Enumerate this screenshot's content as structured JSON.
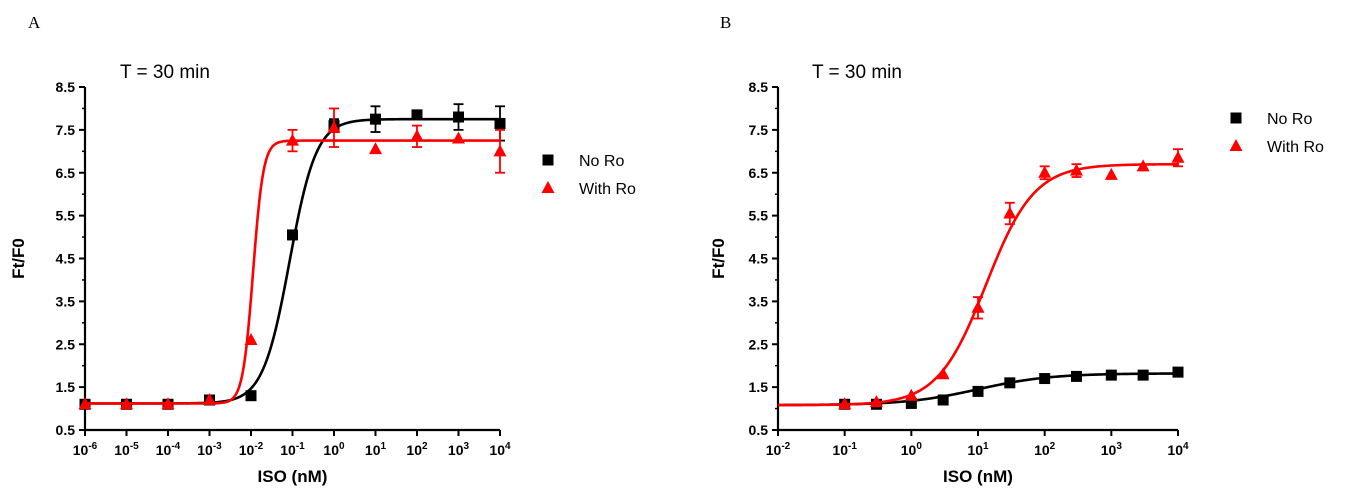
{
  "chart_data": [
    {
      "type": "scatter",
      "panel_label": "A",
      "title": "T = 30 min",
      "xlabel": "ISO (nM)",
      "ylabel": "Ft/F0",
      "x_scale": "log",
      "xlim": [
        1e-06,
        10000.0
      ],
      "ylim": [
        0.5,
        8.5
      ],
      "xticks": [
        1e-06,
        1e-05,
        0.0001,
        0.001,
        0.01,
        0.1,
        1.0,
        10.0,
        100.0,
        1000.0,
        10000.0
      ],
      "xtick_labels": [
        {
          "base": "10",
          "exp": "-6"
        },
        {
          "base": "10",
          "exp": "-5"
        },
        {
          "base": "10",
          "exp": "-4"
        },
        {
          "base": "10",
          "exp": "-3"
        },
        {
          "base": "10",
          "exp": "-2"
        },
        {
          "base": "10",
          "exp": "-1"
        },
        {
          "base": "10",
          "exp": "0"
        },
        {
          "base": "10",
          "exp": "1"
        },
        {
          "base": "10",
          "exp": "2"
        },
        {
          "base": "10",
          "exp": "3"
        },
        {
          "base": "10",
          "exp": "4"
        }
      ],
      "yticks": [
        0.5,
        1.5,
        2.5,
        3.5,
        4.5,
        5.5,
        6.5,
        7.5,
        8.5
      ],
      "ytick_labels": [
        "0.5",
        "1.5",
        "2.5",
        "3.5",
        "4.5",
        "5.5",
        "6.5",
        "7.5",
        "8.5"
      ],
      "legend_position": "right",
      "series": [
        {
          "name": "No Ro",
          "color": "#000000",
          "marker": "square",
          "x": [
            1e-06,
            1e-05,
            0.0001,
            0.001,
            0.01,
            0.1,
            1.0,
            10.0,
            100.0,
            1000.0,
            10000.0
          ],
          "y": [
            1.1,
            1.1,
            1.1,
            1.2,
            1.3,
            5.05,
            7.6,
            7.75,
            7.85,
            7.8,
            7.65
          ],
          "err": [
            0.05,
            0.05,
            0.05,
            0.05,
            0.05,
            0.1,
            0.15,
            0.3,
            0.1,
            0.3,
            0.4
          ],
          "fit": {
            "bottom": 1.12,
            "top": 7.75,
            "log_ec50": -1.07,
            "hill": 1.35
          }
        },
        {
          "name": "With Ro",
          "color": "#ff0000",
          "marker": "triangle",
          "x": [
            1e-06,
            1e-05,
            0.0001,
            0.001,
            0.01,
            0.1,
            1.0,
            10.0,
            100.0,
            1000.0,
            10000.0
          ],
          "y": [
            1.1,
            1.1,
            1.1,
            1.2,
            2.6,
            7.25,
            7.55,
            7.05,
            7.35,
            7.3,
            7.0
          ],
          "err": [
            0.05,
            0.05,
            0.05,
            0.05,
            0.05,
            0.25,
            0.45,
            0.05,
            0.25,
            0.05,
            0.5
          ],
          "fit": {
            "bottom": 1.12,
            "top": 7.25,
            "log_ec50": -1.95,
            "hill": 3.5
          }
        }
      ]
    },
    {
      "type": "scatter",
      "panel_label": "B",
      "title": "T = 30 min",
      "xlabel": "ISO (nM)",
      "ylabel": "Ft/F0",
      "x_scale": "log",
      "xlim": [
        0.01,
        10000.0
      ],
      "ylim": [
        0.5,
        8.5
      ],
      "xticks": [
        0.01,
        0.1,
        1.0,
        10.0,
        100.0,
        1000.0,
        10000.0
      ],
      "xtick_labels": [
        {
          "base": "10",
          "exp": "-2"
        },
        {
          "base": "10",
          "exp": "-1"
        },
        {
          "base": "10",
          "exp": "0"
        },
        {
          "base": "10",
          "exp": "1"
        },
        {
          "base": "10",
          "exp": "2"
        },
        {
          "base": "10",
          "exp": "3"
        },
        {
          "base": "10",
          "exp": "4"
        }
      ],
      "yticks": [
        0.5,
        1.5,
        2.5,
        3.5,
        4.5,
        5.5,
        6.5,
        7.5,
        8.5
      ],
      "ytick_labels": [
        "0.5",
        "1.5",
        "2.5",
        "3.5",
        "4.5",
        "5.5",
        "6.5",
        "7.5",
        "8.5"
      ],
      "legend_position": "top-right",
      "series": [
        {
          "name": "No Ro",
          "color": "#000000",
          "marker": "square",
          "x": [
            0.1,
            0.3,
            1,
            3,
            10,
            30,
            100,
            300,
            1000,
            3000,
            10000
          ],
          "y": [
            1.1,
            1.1,
            1.12,
            1.2,
            1.4,
            1.6,
            1.7,
            1.75,
            1.78,
            1.78,
            1.85
          ],
          "err": [
            0.03,
            0.03,
            0.03,
            0.05,
            0.05,
            0.05,
            0.05,
            0.05,
            0.05,
            0.05,
            0.05
          ],
          "fit": {
            "bottom": 1.08,
            "top": 1.82,
            "log_ec50": 1.0,
            "hill": 0.8
          }
        },
        {
          "name": "With Ro",
          "color": "#ff0000",
          "marker": "triangle",
          "x": [
            0.1,
            0.3,
            1,
            3,
            10,
            30,
            100,
            300,
            1000,
            3000,
            10000
          ],
          "y": [
            1.1,
            1.15,
            1.3,
            1.8,
            3.35,
            5.55,
            6.5,
            6.55,
            6.45,
            6.65,
            6.85
          ],
          "err": [
            0.05,
            0.05,
            0.05,
            0.05,
            0.25,
            0.25,
            0.15,
            0.15,
            0.05,
            0.05,
            0.2
          ],
          "fit": {
            "bottom": 1.08,
            "top": 6.7,
            "log_ec50": 1.12,
            "hill": 1.2
          }
        }
      ]
    }
  ]
}
